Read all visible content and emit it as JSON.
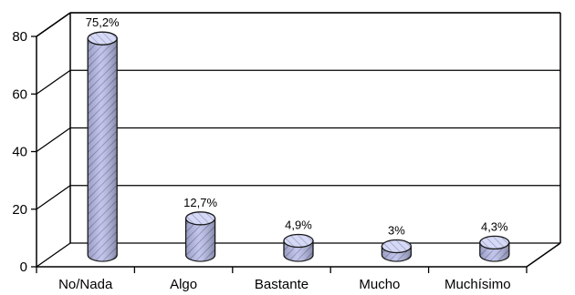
{
  "chart_data": {
    "type": "bar",
    "style": "3d-cylinder",
    "title": "",
    "xlabel": "",
    "ylabel": "",
    "categories": [
      "No/Nada",
      "Algo",
      "Bastante",
      "Mucho",
      "Muchísimo"
    ],
    "values": [
      75.2,
      12.7,
      4.9,
      3,
      4.3
    ],
    "data_labels": [
      "75,2%",
      "12,7%",
      "4,9%",
      "3%",
      "4,3%"
    ],
    "y_ticks": [
      0,
      20,
      40,
      60,
      80
    ],
    "y_tick_labels": [
      "0",
      "20",
      "40",
      "60",
      "80"
    ],
    "ylim": [
      0,
      80
    ],
    "grid": true,
    "legend": "none",
    "colors": {
      "bar_fill": "#b9bde6",
      "bar_top": "#d6d9f3",
      "bar_stroke": "#1a1a1a",
      "axis": "#000000",
      "grid": "#000000"
    }
  }
}
